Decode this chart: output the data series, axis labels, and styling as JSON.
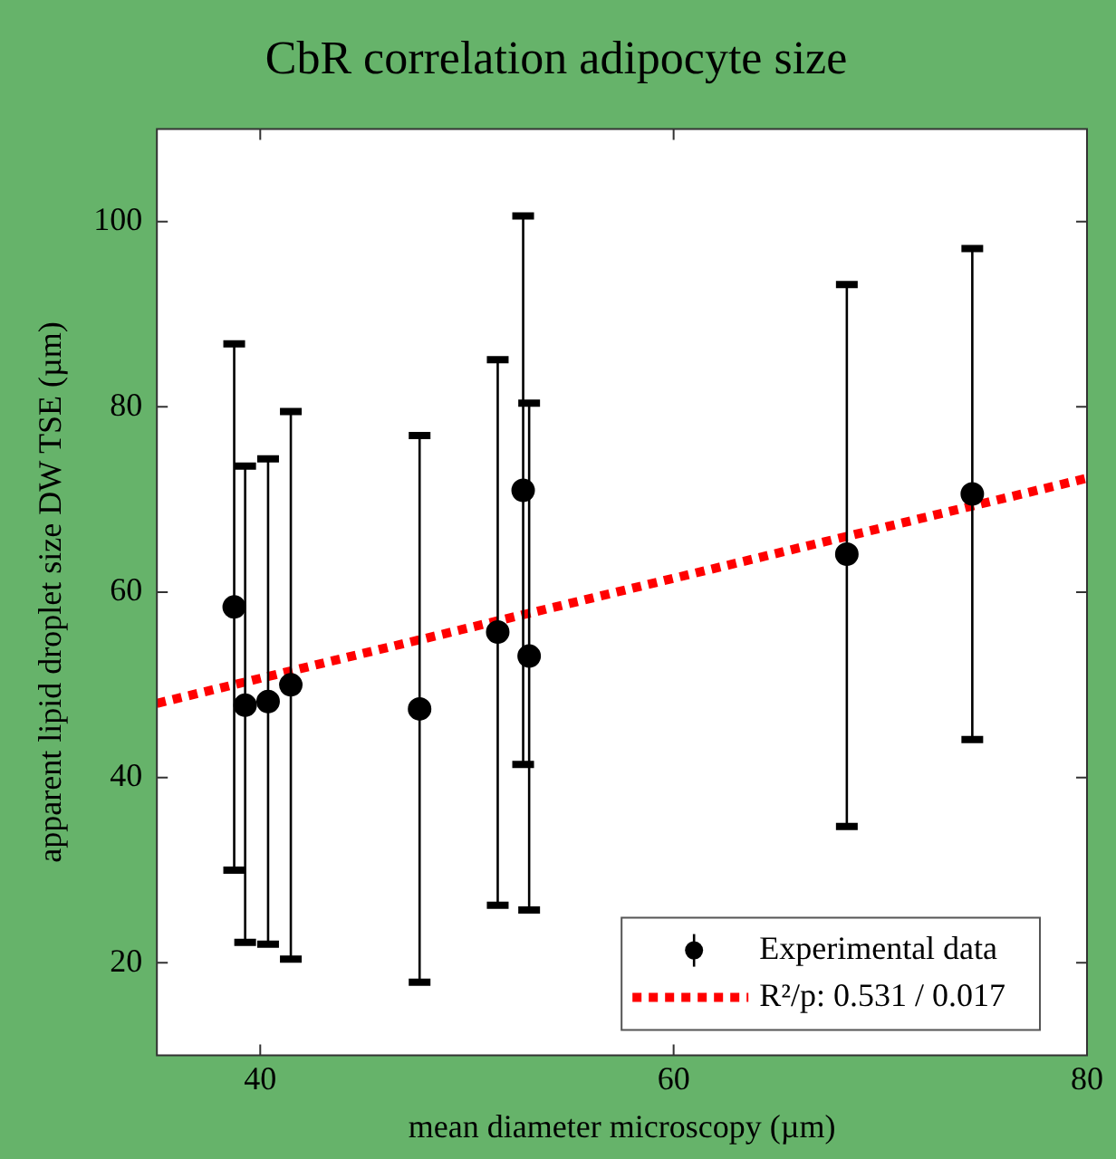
{
  "chart_data": {
    "type": "scatter",
    "title": "CbR correlation adipocyte size",
    "xlabel": "mean diameter microscopy (µm)",
    "ylabel": "apparent lipid droplet size DW TSE (µm)",
    "series": [
      {
        "name": "Experimental data",
        "color": "#000000",
        "marker": "circle",
        "x": [
          38.74,
          39.27,
          40.38,
          41.48,
          47.71,
          51.49,
          52.72,
          53.01,
          68.38,
          74.45
        ],
        "values": [
          58.4,
          47.8,
          48.2,
          50.0,
          47.4,
          55.7,
          71.0,
          53.1,
          64.1,
          70.6
        ],
        "errors": [
          [
            30.0,
            86.8
          ],
          [
            22.2,
            73.6
          ],
          [
            22.0,
            74.4
          ],
          [
            20.4,
            79.5
          ],
          [
            17.9,
            76.9
          ],
          [
            26.2,
            85.1
          ],
          [
            41.4,
            100.6
          ],
          [
            25.7,
            80.4
          ],
          [
            34.7,
            93.2
          ],
          [
            44.1,
            97.1
          ]
        ]
      },
      {
        "name": "R²/p: 0.531 / 0.017",
        "type": "line",
        "color": "#ff0000",
        "marker": "none",
        "line_style": "dotted",
        "x": [
          35,
          80
        ],
        "values": [
          48.0,
          72.3
        ]
      }
    ],
    "xlim": [
      35,
      80
    ],
    "xticks": [
      40,
      60,
      80
    ],
    "ylim": [
      10,
      110
    ],
    "yticks": [
      20,
      40,
      60,
      80,
      100
    ],
    "grid": false,
    "legend": "bottom right"
  }
}
